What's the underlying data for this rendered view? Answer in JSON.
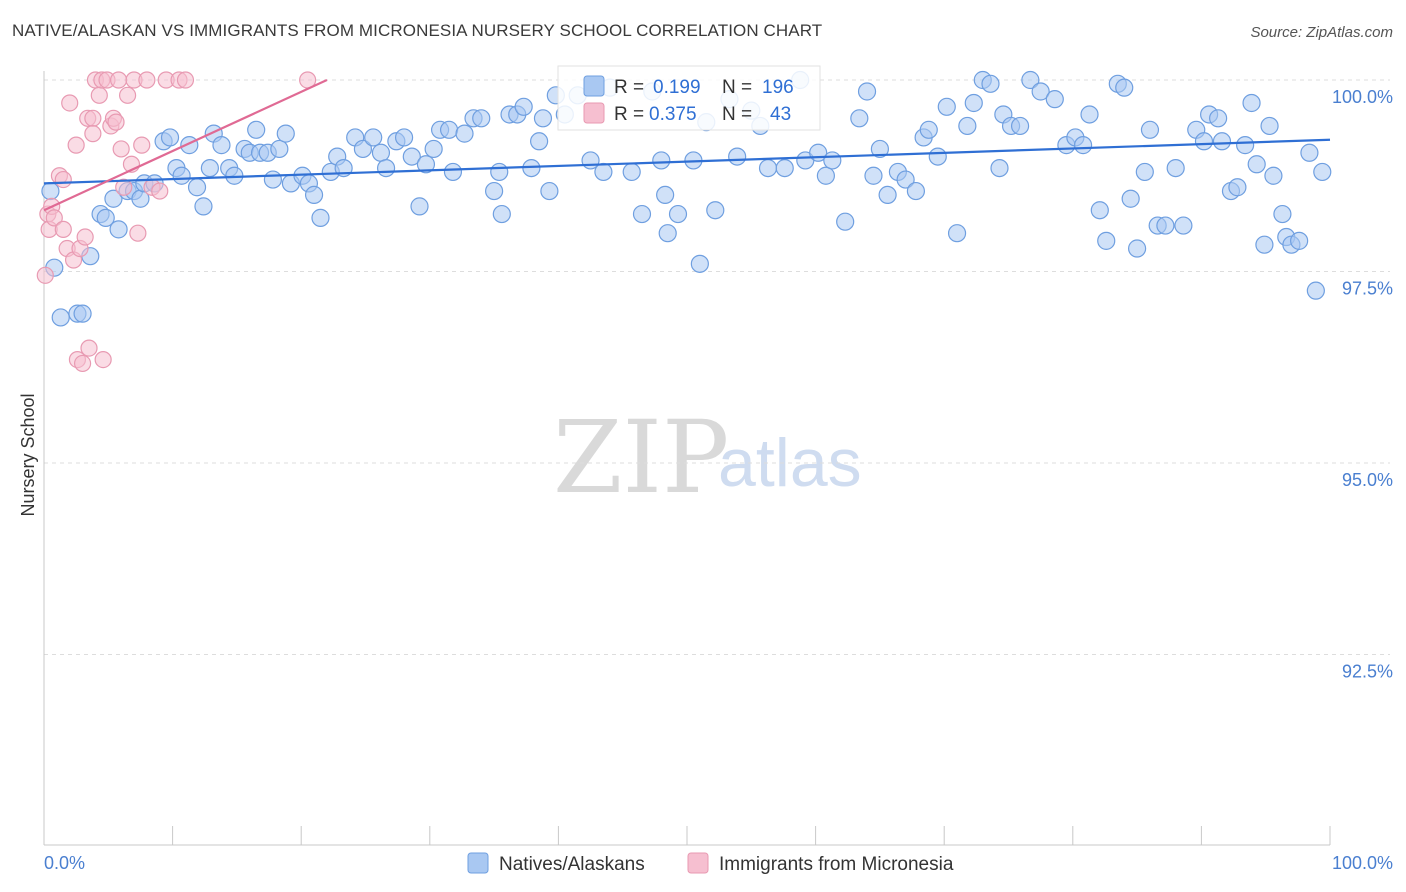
{
  "title": "NATIVE/ALASKAN VS IMMIGRANTS FROM MICRONESIA NURSERY SCHOOL CORRELATION CHART",
  "source": "Source: ZipAtlas.com",
  "watermark": {
    "zip": "ZIP",
    "atlas": "atlas"
  },
  "colors": {
    "blue_fill": "#a9c8f2",
    "blue_stroke": "#6f9fe0",
    "blue_line": "#2f6fd4",
    "pink_fill": "#f6bfd0",
    "pink_stroke": "#e89ab2",
    "pink_line": "#e06a94",
    "grid": "#dddddd",
    "tick_text": "#4a7fd0"
  },
  "legend": {
    "rows": [
      {
        "r_label": "R =",
        "r_value": "0.199",
        "n_label": "N =",
        "n_value": "196"
      },
      {
        "r_label": "R =",
        "r_value": "0.375",
        "n_label": "N =",
        "n_value": "43"
      }
    ]
  },
  "bottom_legend": [
    "Natives/Alaskans",
    "Immigrants from Micronesia"
  ],
  "chart_data": {
    "type": "scatter",
    "title": "NATIVE/ALASKAN VS IMMIGRANTS FROM MICRONESIA NURSERY SCHOOL CORRELATION CHART",
    "xlabel": "",
    "ylabel": "Nursery School",
    "xlim": [
      0,
      100
    ],
    "ylim": [
      89.9,
      100.4
    ],
    "x_tick_labels": [
      "0.0%",
      "100.0%"
    ],
    "y_ticks": [
      100.0,
      97.5,
      95.0,
      92.5
    ],
    "y_tick_labels": [
      "100.0%",
      "97.5%",
      "95.0%",
      "92.5%"
    ],
    "grid": true,
    "series": [
      {
        "name": "Natives/Alaskans",
        "R": 0.199,
        "N": 196,
        "trend": {
          "x": [
            0,
            100
          ],
          "y": [
            98.65,
            99.22
          ]
        },
        "points": [
          [
            0.5,
            98.55
          ],
          [
            0.8,
            97.55
          ],
          [
            1.3,
            96.9
          ],
          [
            2.6,
            96.95
          ],
          [
            3.0,
            96.95
          ],
          [
            3.6,
            97.7
          ],
          [
            4.4,
            98.25
          ],
          [
            4.8,
            98.2
          ],
          [
            5.4,
            98.45
          ],
          [
            5.8,
            98.05
          ],
          [
            6.5,
            98.55
          ],
          [
            7.0,
            98.55
          ],
          [
            7.5,
            98.45
          ],
          [
            7.8,
            98.65
          ],
          [
            8.6,
            98.65
          ],
          [
            9.3,
            99.2
          ],
          [
            9.8,
            99.25
          ],
          [
            10.3,
            98.85
          ],
          [
            10.7,
            98.75
          ],
          [
            11.3,
            99.15
          ],
          [
            11.9,
            98.6
          ],
          [
            12.4,
            98.35
          ],
          [
            12.9,
            98.85
          ],
          [
            13.2,
            99.3
          ],
          [
            13.8,
            99.15
          ],
          [
            14.4,
            98.85
          ],
          [
            14.8,
            98.75
          ],
          [
            15.6,
            99.1
          ],
          [
            16.0,
            99.05
          ],
          [
            16.5,
            99.35
          ],
          [
            16.8,
            99.05
          ],
          [
            17.4,
            99.05
          ],
          [
            17.8,
            98.7
          ],
          [
            18.3,
            99.1
          ],
          [
            18.8,
            99.3
          ],
          [
            19.2,
            98.65
          ],
          [
            20.1,
            98.75
          ],
          [
            20.6,
            98.65
          ],
          [
            21.0,
            98.5
          ],
          [
            21.5,
            98.2
          ],
          [
            22.3,
            98.8
          ],
          [
            22.8,
            99.0
          ],
          [
            23.3,
            98.85
          ],
          [
            24.2,
            99.25
          ],
          [
            24.8,
            99.1
          ],
          [
            25.6,
            99.25
          ],
          [
            26.2,
            99.05
          ],
          [
            26.6,
            98.85
          ],
          [
            27.4,
            99.2
          ],
          [
            28.0,
            99.25
          ],
          [
            28.6,
            99.0
          ],
          [
            29.2,
            98.35
          ],
          [
            29.7,
            98.9
          ],
          [
            30.3,
            99.1
          ],
          [
            30.8,
            99.35
          ],
          [
            31.5,
            99.35
          ],
          [
            31.8,
            98.8
          ],
          [
            32.7,
            99.3
          ],
          [
            33.4,
            99.5
          ],
          [
            34.0,
            99.5
          ],
          [
            35.0,
            98.55
          ],
          [
            35.4,
            98.8
          ],
          [
            35.6,
            98.25
          ],
          [
            36.2,
            99.55
          ],
          [
            36.8,
            99.55
          ],
          [
            37.3,
            99.65
          ],
          [
            37.9,
            98.85
          ],
          [
            38.5,
            99.2
          ],
          [
            38.8,
            99.5
          ],
          [
            39.3,
            98.55
          ],
          [
            39.8,
            99.8
          ],
          [
            40.5,
            99.55
          ],
          [
            41.5,
            99.8
          ],
          [
            42.5,
            98.95
          ],
          [
            43.5,
            98.8
          ],
          [
            44.0,
            99.9
          ],
          [
            45.7,
            98.8
          ],
          [
            46.5,
            98.25
          ],
          [
            47.3,
            99.85
          ],
          [
            48.0,
            98.95
          ],
          [
            48.3,
            98.5
          ],
          [
            48.5,
            98.0
          ],
          [
            49.3,
            98.25
          ],
          [
            50.5,
            98.95
          ],
          [
            51.0,
            97.6
          ],
          [
            51.5,
            99.45
          ],
          [
            52.2,
            98.3
          ],
          [
            53.3,
            99.75
          ],
          [
            53.9,
            99.0
          ],
          [
            55.0,
            99.6
          ],
          [
            55.7,
            99.4
          ],
          [
            56.3,
            98.85
          ],
          [
            57.6,
            98.85
          ],
          [
            58.8,
            100.0
          ],
          [
            59.2,
            98.95
          ],
          [
            60.2,
            99.05
          ],
          [
            60.8,
            98.75
          ],
          [
            61.3,
            98.95
          ],
          [
            62.3,
            98.15
          ],
          [
            63.4,
            99.5
          ],
          [
            64.0,
            99.85
          ],
          [
            64.5,
            98.75
          ],
          [
            65.0,
            99.1
          ],
          [
            65.6,
            98.5
          ],
          [
            66.4,
            98.8
          ],
          [
            67.0,
            98.7
          ],
          [
            67.8,
            98.55
          ],
          [
            68.4,
            99.25
          ],
          [
            68.8,
            99.35
          ],
          [
            69.5,
            99.0
          ],
          [
            70.2,
            99.65
          ],
          [
            71.0,
            98.0
          ],
          [
            71.8,
            99.4
          ],
          [
            72.3,
            99.7
          ],
          [
            73.0,
            100.0
          ],
          [
            73.6,
            99.95
          ],
          [
            74.3,
            98.85
          ],
          [
            74.6,
            99.55
          ],
          [
            75.2,
            99.4
          ],
          [
            75.9,
            99.4
          ],
          [
            76.7,
            100.0
          ],
          [
            77.5,
            99.85
          ],
          [
            78.6,
            99.75
          ],
          [
            79.5,
            99.15
          ],
          [
            80.2,
            99.25
          ],
          [
            80.8,
            99.15
          ],
          [
            81.3,
            99.55
          ],
          [
            82.1,
            98.3
          ],
          [
            82.6,
            97.9
          ],
          [
            83.5,
            99.95
          ],
          [
            84.0,
            99.9
          ],
          [
            84.5,
            98.45
          ],
          [
            85.0,
            97.8
          ],
          [
            85.6,
            98.8
          ],
          [
            86.0,
            99.35
          ],
          [
            86.6,
            98.1
          ],
          [
            87.2,
            98.1
          ],
          [
            88.0,
            98.85
          ],
          [
            88.6,
            98.1
          ],
          [
            89.6,
            99.35
          ],
          [
            90.2,
            99.2
          ],
          [
            90.6,
            99.55
          ],
          [
            91.3,
            99.5
          ],
          [
            91.6,
            99.2
          ],
          [
            92.3,
            98.55
          ],
          [
            92.8,
            98.6
          ],
          [
            93.4,
            99.15
          ],
          [
            93.9,
            99.7
          ],
          [
            94.3,
            98.9
          ],
          [
            94.9,
            97.85
          ],
          [
            95.3,
            99.4
          ],
          [
            95.6,
            98.75
          ],
          [
            96.3,
            98.25
          ],
          [
            96.6,
            97.95
          ],
          [
            97.0,
            97.85
          ],
          [
            97.6,
            97.9
          ],
          [
            98.4,
            99.05
          ],
          [
            98.9,
            97.25
          ],
          [
            99.4,
            98.8
          ]
        ]
      },
      {
        "name": "Immigrants from Micronesia",
        "R": 0.375,
        "N": 43,
        "trend": {
          "x": [
            0,
            22
          ],
          "y": [
            98.3,
            100.0
          ]
        },
        "points": [
          [
            0.1,
            97.45
          ],
          [
            0.3,
            98.25
          ],
          [
            0.4,
            98.05
          ],
          [
            0.6,
            98.35
          ],
          [
            0.8,
            98.2
          ],
          [
            1.2,
            98.75
          ],
          [
            1.5,
            98.05
          ],
          [
            1.5,
            98.7
          ],
          [
            1.8,
            97.8
          ],
          [
            2.0,
            99.7
          ],
          [
            2.3,
            97.65
          ],
          [
            2.5,
            99.15
          ],
          [
            2.6,
            96.35
          ],
          [
            2.8,
            97.8
          ],
          [
            3.0,
            96.3
          ],
          [
            3.2,
            97.95
          ],
          [
            3.4,
            99.5
          ],
          [
            3.5,
            96.5
          ],
          [
            3.8,
            99.5
          ],
          [
            3.8,
            99.3
          ],
          [
            4.0,
            100.0
          ],
          [
            4.3,
            99.8
          ],
          [
            4.5,
            100.0
          ],
          [
            4.6,
            96.35
          ],
          [
            4.9,
            100.0
          ],
          [
            5.2,
            99.4
          ],
          [
            5.4,
            99.5
          ],
          [
            5.6,
            99.45
          ],
          [
            5.8,
            100.0
          ],
          [
            6.0,
            99.1
          ],
          [
            6.2,
            98.6
          ],
          [
            6.5,
            99.8
          ],
          [
            6.8,
            98.9
          ],
          [
            7.0,
            100.0
          ],
          [
            7.3,
            98.0
          ],
          [
            7.6,
            99.15
          ],
          [
            8.0,
            100.0
          ],
          [
            8.4,
            98.6
          ],
          [
            9.0,
            98.55
          ],
          [
            9.5,
            100.0
          ],
          [
            10.5,
            100.0
          ],
          [
            11.0,
            100.0
          ],
          [
            20.5,
            100.0
          ]
        ]
      }
    ]
  }
}
